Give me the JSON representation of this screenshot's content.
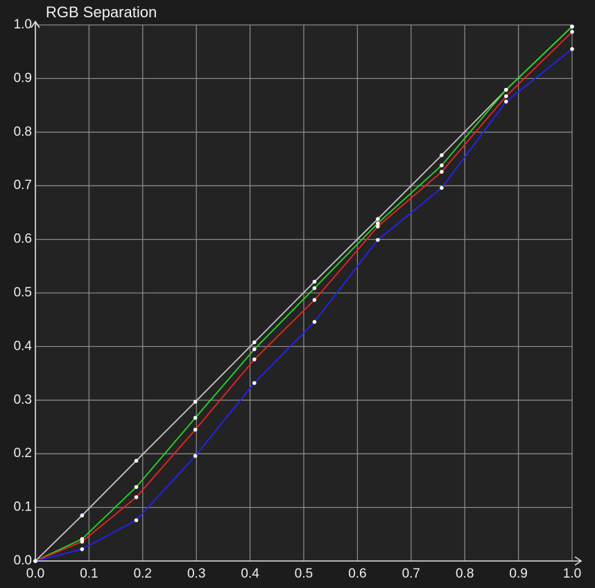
{
  "chart_data": {
    "type": "line",
    "title": "RGB Separation",
    "x": [
      0,
      0.087,
      0.188,
      0.298,
      0.408,
      0.52,
      0.638,
      0.757,
      0.877,
      1.0
    ],
    "series": [
      {
        "color": "#c8c8c8",
        "values": [
          0,
          0.085,
          0.187,
          0.297,
          0.408,
          0.521,
          0.638,
          0.757,
          0.879,
          0.997
        ]
      },
      {
        "color": "#22dd22",
        "values": [
          0,
          0.041,
          0.138,
          0.267,
          0.395,
          0.509,
          0.63,
          0.738,
          0.879,
          0.997
        ]
      },
      {
        "color": "#ee2222",
        "values": [
          0,
          0.036,
          0.119,
          0.245,
          0.376,
          0.487,
          0.624,
          0.726,
          0.867,
          0.987
        ]
      },
      {
        "color": "#2222ff",
        "values": [
          0,
          0.022,
          0.076,
          0.196,
          0.332,
          0.446,
          0.599,
          0.696,
          0.857,
          0.955
        ]
      }
    ],
    "xlim": [
      0,
      1
    ],
    "ylim": [
      0,
      1
    ],
    "xticks": [
      {
        "value": 0,
        "label": "0.0"
      },
      0.1,
      0.2,
      0.3,
      0.4,
      0.5,
      0.6,
      0.7,
      0.8,
      0.9,
      {
        "value": 1,
        "label": "1.0"
      }
    ],
    "yticks": [
      {
        "value": 0,
        "label": "0.0"
      },
      0.1,
      0.2,
      0.3,
      0.4,
      0.5,
      0.6,
      0.7,
      0.8,
      0.9,
      {
        "value": 1,
        "label": "1.0"
      }
    ],
    "grid": true
  }
}
